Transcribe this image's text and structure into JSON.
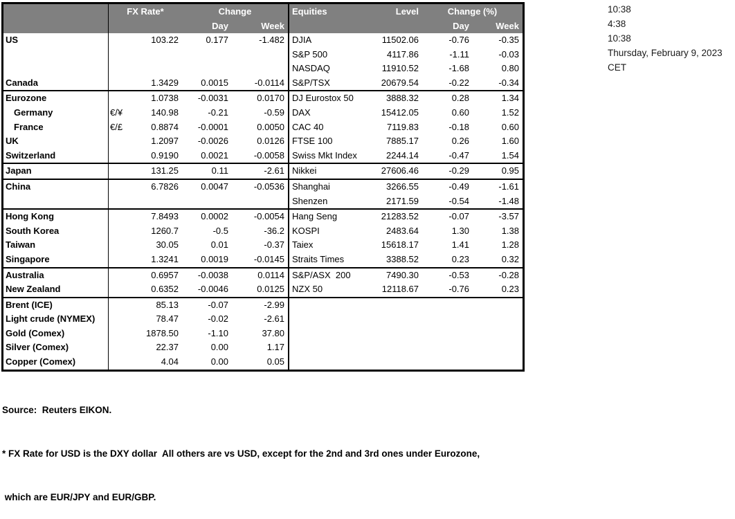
{
  "colors": {
    "header_bg": "#808080",
    "header_text": "#ffffff",
    "border": "#000000"
  },
  "fx_table": {
    "header": {
      "rate": "FX Rate*",
      "change": "Change",
      "day": "Day",
      "week": "Week"
    },
    "sections": [
      {
        "rows": [
          {
            "name": "US",
            "rate": "103.22",
            "day": "0.177",
            "week": "-1.482"
          },
          {},
          {},
          {
            "name": "Canada",
            "rate": "1.3429",
            "day": "0.0015",
            "week": "-0.0114"
          }
        ]
      },
      {
        "rows": [
          {
            "name": "Eurozone",
            "rate": "1.0738",
            "day": "-0.0031",
            "week": "0.0170"
          },
          {
            "name": "Germany",
            "indent": true,
            "pair": "€/¥",
            "rate": "140.98",
            "day": "-0.21",
            "week": "-0.59"
          },
          {
            "name": "France",
            "indent": true,
            "pair": "€/£",
            "rate": "0.8874",
            "day": "-0.0001",
            "week": "0.0050"
          },
          {
            "name": "UK",
            "rate": "1.2097",
            "day": "-0.0026",
            "week": "0.0126"
          },
          {
            "name": "Switzerland",
            "rate": "0.9190",
            "day": "0.0021",
            "week": "-0.0058"
          }
        ]
      },
      {
        "rows": [
          {
            "name": "Japan",
            "rate": "131.25",
            "day": "0.11",
            "week": "-2.61"
          }
        ]
      },
      {
        "rows": [
          {
            "name": "China",
            "rate": "6.7826",
            "day": "0.0047",
            "week": "-0.0536"
          },
          {}
        ]
      },
      {
        "rows": [
          {
            "name": "Hong Kong",
            "rate": "7.8493",
            "day": "0.0002",
            "week": "-0.0054"
          },
          {
            "name": "South Korea",
            "rate": "1260.7",
            "day": "-0.5",
            "week": "-36.2"
          },
          {
            "name": "Taiwan",
            "rate": "30.05",
            "day": "0.01",
            "week": "-0.37"
          },
          {
            "name": "Singapore",
            "rate": "1.3241",
            "day": "0.0019",
            "week": "-0.0145"
          }
        ]
      },
      {
        "rows": [
          {
            "name": "Australia",
            "rate": "0.6957",
            "day": "-0.0038",
            "week": "0.0114"
          },
          {
            "name": "New Zealand",
            "rate": "0.6352",
            "day": "-0.0046",
            "week": "0.0125"
          }
        ]
      },
      {
        "rows": [
          {
            "name": "Brent (ICE)",
            "rate": "85.13",
            "day": "-0.07",
            "week": "-2.99"
          },
          {
            "name": "Light crude (NYMEX)",
            "rate": "78.47",
            "day": "-0.02",
            "week": "-2.61"
          },
          {
            "name": "Gold (Comex)",
            "rate": "1878.50",
            "day": "-1.10",
            "week": "37.80"
          },
          {
            "name": "Silver (Comex)",
            "rate": "22.37",
            "day": "0.00",
            "week": "1.17"
          },
          {
            "name": "Copper (Comex)",
            "rate": "4.04",
            "day": "0.00",
            "week": "0.05"
          }
        ]
      }
    ]
  },
  "eq_table": {
    "header": {
      "name": "Equities",
      "level": "Level",
      "change": "Change (%)",
      "day": "Day",
      "week": "Week"
    },
    "sections": [
      {
        "rows": [
          {
            "name": "DJIA",
            "level": "11502.06",
            "day": "-0.76",
            "week": "-0.35"
          },
          {
            "name": "S&P 500",
            "level": "4117.86",
            "day": "-1.11",
            "week": "-0.03"
          },
          {
            "name": "NASDAQ",
            "level": "11910.52",
            "day": "-1.68",
            "week": "0.80"
          },
          {
            "name": "S&P/TSX",
            "level": "20679.54",
            "day": "-0.22",
            "week": "-0.34"
          }
        ]
      },
      {
        "rows": [
          {
            "name": "DJ Eurostox 50",
            "level": "3888.32",
            "day": "0.28",
            "week": "1.34"
          },
          {
            "name": "DAX",
            "level": "15412.05",
            "day": "0.60",
            "week": "1.52"
          },
          {
            "name": "CAC 40",
            "level": "7119.83",
            "day": "-0.18",
            "week": "0.60"
          },
          {
            "name": "FTSE 100",
            "level": "7885.17",
            "day": "0.26",
            "week": "1.60"
          },
          {
            "name": "Swiss Mkt Index",
            "level": "2244.14",
            "day": "-0.47",
            "week": "1.54"
          }
        ]
      },
      {
        "rows": [
          {
            "name": "Nikkei",
            "level": "27606.46",
            "day": "-0.29",
            "week": "0.95"
          }
        ]
      },
      {
        "rows": [
          {
            "name": "Shanghai",
            "level": "3266.55",
            "day": "-0.49",
            "week": "-1.61"
          },
          {
            "name": "Shenzen",
            "level": "2171.59",
            "day": "-0.54",
            "week": "-1.48"
          }
        ]
      },
      {
        "rows": [
          {
            "name": "Hang Seng",
            "level": "21283.52",
            "day": "-0.07",
            "week": "-3.57"
          },
          {
            "name": "KOSPI",
            "level": "2483.64",
            "day": "1.30",
            "week": "1.38"
          },
          {
            "name": "Taiex",
            "level": "15618.17",
            "day": "1.41",
            "week": "1.28"
          },
          {
            "name": "Straits Times",
            "level": "3388.52",
            "day": "0.23",
            "week": "0.32"
          }
        ]
      },
      {
        "rows": [
          {
            "name": "S&P/ASX  200",
            "level": "7490.30",
            "day": "-0.53",
            "week": "-0.28"
          },
          {
            "name": "NZX 50",
            "level": "12118.67",
            "day": "-0.76",
            "week": "0.23"
          }
        ]
      },
      {
        "rows": [
          {},
          {},
          {},
          {},
          {}
        ]
      }
    ]
  },
  "timestamps": {
    "lines": [
      "10:38",
      "4:38",
      "10:38",
      "Thursday, February 9, 2023",
      "CET"
    ]
  },
  "footer": {
    "source": "Source:  Reuters EIKON.",
    "note1": "* FX Rate for USD is the DXY dollar  All others are vs USD, except for the 2nd and 3rd ones under Eurozone,",
    "note2": " which are EUR/JPY and EUR/GBP."
  }
}
